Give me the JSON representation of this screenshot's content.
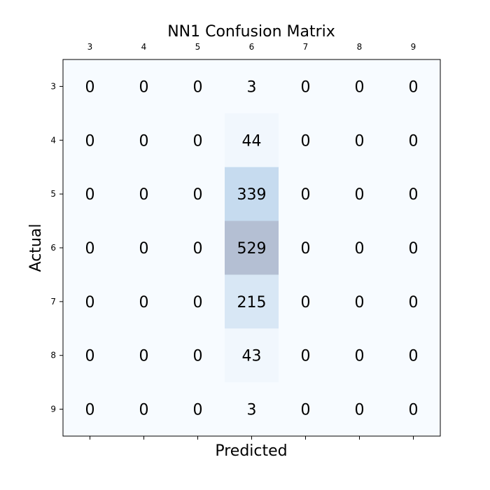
{
  "chart_data": {
    "type": "heatmap",
    "title": "NN1 Confusion Matrix",
    "xlabel": "Predicted",
    "ylabel": "Actual",
    "x_categories": [
      "3",
      "4",
      "5",
      "6",
      "7",
      "8",
      "9"
    ],
    "y_categories": [
      "3",
      "4",
      "5",
      "6",
      "7",
      "8",
      "9"
    ],
    "x_tick_position": "top",
    "values": [
      [
        0,
        0,
        0,
        3,
        0,
        0,
        0
      ],
      [
        0,
        0,
        0,
        44,
        0,
        0,
        0
      ],
      [
        0,
        0,
        0,
        339,
        0,
        0,
        0
      ],
      [
        0,
        0,
        0,
        529,
        0,
        0,
        0
      ],
      [
        0,
        0,
        0,
        215,
        0,
        0,
        0
      ],
      [
        0,
        0,
        0,
        43,
        0,
        0,
        0
      ],
      [
        0,
        0,
        0,
        3,
        0,
        0,
        0
      ]
    ],
    "colormap": "Blues",
    "color_scale_max": 529,
    "grid": false,
    "colors": {
      "low": "#f7fbff",
      "mid": "#c6dbef",
      "high": "#b4bfd3"
    }
  }
}
